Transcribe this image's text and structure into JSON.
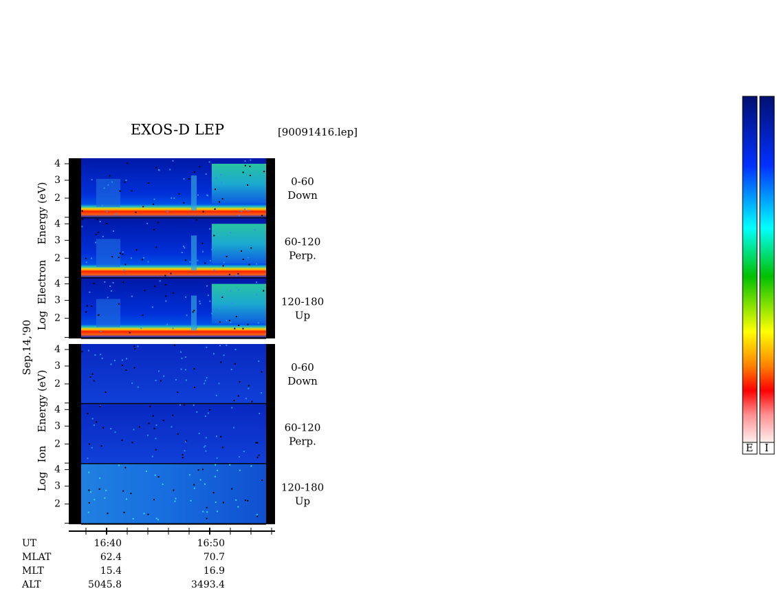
{
  "title": "EXOS-D LEP",
  "file": "[90091416.lep]",
  "date_label": "Sep.14,'90",
  "yticks": [
    "4",
    "3",
    "2"
  ],
  "electron": {
    "axis_words": [
      "Log",
      "Electron",
      "Energy (eV)"
    ],
    "panels": [
      {
        "range": "0-60",
        "direction": "Down"
      },
      {
        "range": "60-120",
        "direction": "Perp."
      },
      {
        "range": "120-180",
        "direction": "Up"
      }
    ]
  },
  "ion": {
    "axis_words": [
      "Log",
      "Ion",
      "Energy (eV)"
    ],
    "panels": [
      {
        "range": "0-60",
        "direction": "Down"
      },
      {
        "range": "60-120",
        "direction": "Perp."
      },
      {
        "range": "120-180",
        "direction": "Up"
      }
    ]
  },
  "time_table": {
    "rows": [
      [
        "UT",
        "16:40",
        "16:50"
      ],
      [
        "MLAT",
        "62.4",
        "70.7"
      ],
      [
        "MLT",
        "15.4",
        "16.9"
      ],
      [
        "ALT",
        "5045.8",
        "3493.4"
      ]
    ]
  },
  "colorbar_labels": [
    "E",
    "I"
  ]
}
